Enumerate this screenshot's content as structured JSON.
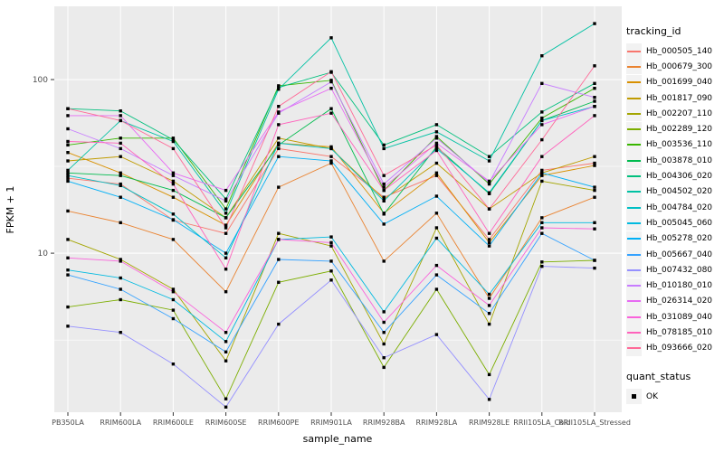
{
  "panel": {
    "background": "#EBEBEB",
    "grid_color": "#FFFFFF",
    "key_fill": "#F2F2F2",
    "tick_color": "#333333",
    "tick_label_color": "#4D4D4D"
  },
  "legend": {
    "color_title": "tracking_id",
    "shape_title": "quant_status",
    "shape_items": [
      {
        "label": "OK",
        "shape": "filled-square",
        "color": "#000000"
      }
    ]
  },
  "chart_data": {
    "type": "line",
    "x_type": "categorical",
    "y_scale": "log10",
    "xlabel": "sample_name",
    "ylabel": "FPKM + 1",
    "ylim": [
      1.2,
      264
    ],
    "y_major_ticks": [
      100,
      10
    ],
    "y_minor_gridlines": [
      31.62,
      3.162
    ],
    "grid": true,
    "legend_position": "right",
    "point_marker": {
      "shape": "square",
      "color": "#000000",
      "size": 3.4,
      "legend_label": "OK"
    },
    "categories": [
      "PB350LA",
      "RRIM600LA",
      "RRIM600LE",
      "RRIM600SE",
      "RRIM600PE",
      "RRIM901LA",
      "RRIM928BA",
      "RRIM928LA",
      "RRIM928LE",
      "RRII105LA_Cold",
      "RRII105LA_Stressed"
    ],
    "series": [
      {
        "name": "Hb_000505_140",
        "color": "#F8766D",
        "values": [
          27,
          25,
          15.5,
          13,
          40,
          36,
          21,
          28,
          12,
          30,
          33
        ]
      },
      {
        "name": "Hb_000679_300",
        "color": "#EA8331",
        "values": [
          17.5,
          15,
          12,
          6.0,
          24,
          33,
          9.0,
          17,
          5.5,
          16,
          21
        ]
      },
      {
        "name": "Hb_001699_040",
        "color": "#D89000",
        "values": [
          38,
          29,
          21,
          14.5,
          43,
          41,
          17,
          29,
          11.5,
          28,
          32
        ]
      },
      {
        "name": "Hb_001817_090",
        "color": "#C09B00",
        "values": [
          34,
          36,
          26,
          16,
          46,
          40,
          20.5,
          33,
          18,
          29,
          36
        ]
      },
      {
        "name": "Hb_002207_110",
        "color": "#A3A500",
        "values": [
          12,
          9.2,
          6.2,
          2.4,
          13,
          11,
          3.0,
          14,
          3.9,
          26,
          23
        ]
      },
      {
        "name": "Hb_002289_120",
        "color": "#7CAE00",
        "values": [
          4.9,
          5.4,
          4.7,
          1.45,
          6.8,
          7.9,
          2.2,
          6.2,
          2.0,
          8.9,
          9.1
        ]
      },
      {
        "name": "Hb_003536_110",
        "color": "#39B600",
        "values": [
          42,
          46,
          46,
          18,
          92,
          99,
          23,
          47,
          25,
          60,
          89
        ]
      },
      {
        "name": "Hb_003878_010",
        "color": "#00BB4E",
        "values": [
          29,
          28,
          23,
          16,
          42,
          68,
          16.8,
          41,
          22,
          58,
          75
        ]
      },
      {
        "name": "Hb_004306_020",
        "color": "#00BF7D",
        "values": [
          68,
          66,
          45,
          20.5,
          90,
          110,
          42,
          55,
          36,
          65,
          95
        ]
      },
      {
        "name": "Hb_004502_020",
        "color": "#00C1A3",
        "values": [
          30,
          58,
          44,
          17,
          88,
          174,
          40,
          50,
          34,
          137,
          210
        ]
      },
      {
        "name": "Hb_004784_020",
        "color": "#00BFC4",
        "values": [
          28,
          24.5,
          16.8,
          9.4,
          43,
          40,
          20,
          40,
          22.3,
          58,
          70
        ]
      },
      {
        "name": "Hb_005045_060",
        "color": "#00BAE0",
        "values": [
          8.0,
          7.2,
          5.4,
          3.1,
          12,
          12.4,
          4.6,
          12.2,
          5.8,
          15,
          15
        ]
      },
      {
        "name": "Hb_005278_020",
        "color": "#00B0F6",
        "values": [
          26,
          21,
          15.6,
          10,
          36,
          34,
          14.7,
          21.3,
          11,
          29,
          24
        ]
      },
      {
        "name": "Hb_005667_040",
        "color": "#35A2FF",
        "values": [
          7.5,
          6.2,
          4.2,
          2.7,
          9.2,
          9.0,
          3.5,
          7.5,
          4.5,
          13,
          9.1
        ]
      },
      {
        "name": "Hb_007432_080",
        "color": "#9590FF",
        "values": [
          3.8,
          3.5,
          2.3,
          1.3,
          3.9,
          7.0,
          2.5,
          3.4,
          1.44,
          8.4,
          8.2
        ]
      },
      {
        "name": "Hb_010180_010",
        "color": "#C77CFF",
        "values": [
          52,
          40,
          28,
          20,
          64,
          97,
          25,
          46,
          25.5,
          95,
          79
        ]
      },
      {
        "name": "Hb_026314_020",
        "color": "#E76BF3",
        "values": [
          62,
          62,
          29,
          23,
          65,
          89,
          24,
          43,
          26,
          55,
          70
        ]
      },
      {
        "name": "Hb_031089_040",
        "color": "#FA62DB",
        "values": [
          9.4,
          9.0,
          6.0,
          3.5,
          12,
          11.5,
          4.0,
          8.5,
          5.0,
          14,
          13.8
        ]
      },
      {
        "name": "Hb_078185_010",
        "color": "#FF62BC",
        "values": [
          44,
          43,
          25,
          8.1,
          55,
          64,
          23,
          39,
          13,
          36,
          62
        ]
      },
      {
        "name": "Hb_093666_020",
        "color": "#FF6A98",
        "values": [
          68,
          58,
          40,
          14,
          70,
          111,
          28,
          42,
          18,
          45,
          120
        ]
      }
    ]
  }
}
